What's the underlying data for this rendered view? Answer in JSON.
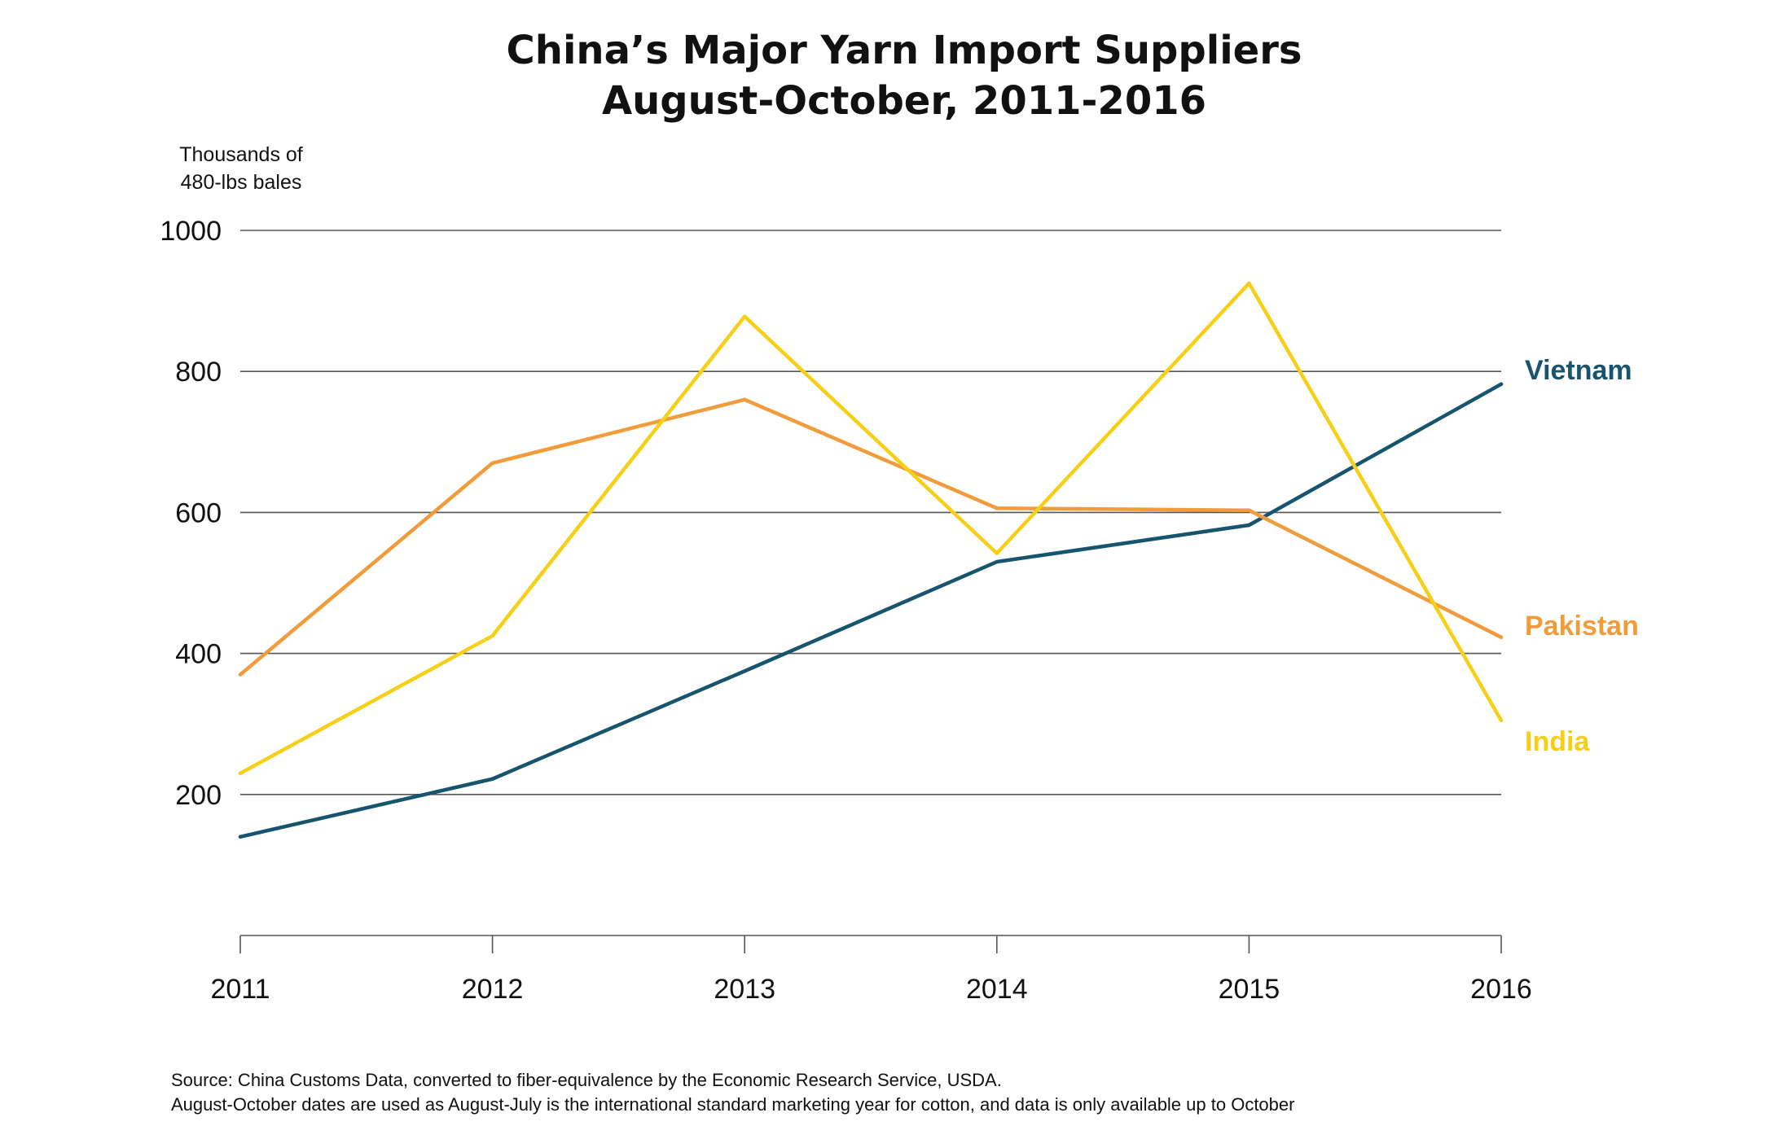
{
  "chart_data": {
    "type": "line",
    "title": [
      "China’s Major Yarn Import Suppliers",
      "August-October, 2011-2016"
    ],
    "ylabel": [
      "Thousands of",
      "480-lbs bales"
    ],
    "x": [
      "2011",
      "2012",
      "2013",
      "2014",
      "2015",
      "2016"
    ],
    "yticks": [
      "200",
      "400",
      "600",
      "800",
      "1000"
    ],
    "ylim": [
      0,
      1000
    ],
    "grid": true,
    "series": [
      {
        "name": "Vietnam",
        "color": "#17546e",
        "values": [
          140,
          222,
          375,
          530,
          582,
          782
        ]
      },
      {
        "name": "Pakistan",
        "color": "#f29b3b",
        "values": [
          370,
          670,
          760,
          606,
          603,
          423
        ]
      },
      {
        "name": "India",
        "color": "#f6cf16",
        "values": [
          230,
          425,
          878,
          542,
          925,
          305
        ]
      }
    ]
  },
  "source": [
    "Source:  China Customs Data, converted to fiber-equivalence by the Economic Research Service, USDA.",
    "August-October dates are used as August-July is the international standard marketing year for cotton, and data is only available up to October"
  ],
  "colors": {
    "grid": "#555555",
    "text": "#111111"
  }
}
